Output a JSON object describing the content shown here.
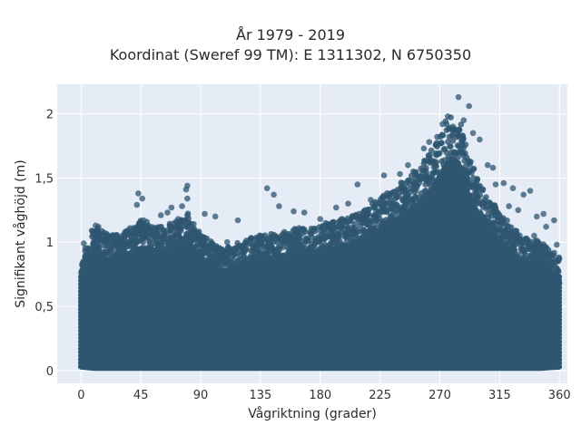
{
  "chart_data": {
    "type": "scatter",
    "title": "År 1979 - 2019",
    "subtitle": "Koordinat (Sweref 99 TM): E 1311302, N 6750350",
    "xlabel": "Vågriktning (grader)",
    "ylabel": "Signifikant våghöjd (m)",
    "xlim": [
      -18,
      366
    ],
    "ylim": [
      -0.1,
      2.23
    ],
    "xticks": [
      0,
      45,
      90,
      135,
      180,
      225,
      270,
      315,
      360
    ],
    "xtick_labels": [
      "0",
      "45",
      "90",
      "135",
      "180",
      "225",
      "270",
      "315",
      "360"
    ],
    "yticks": [
      0,
      0.5,
      1,
      1.5,
      2
    ],
    "ytick_labels": [
      "0",
      "0,5",
      "1",
      "1,5",
      "2"
    ],
    "grid": true,
    "background": "#e5ecf6",
    "marker_color": "#2e5670",
    "envelope": {
      "x": [
        0,
        10,
        20,
        30,
        45,
        60,
        75,
        80,
        90,
        105,
        120,
        135,
        150,
        165,
        180,
        195,
        210,
        225,
        240,
        255,
        265,
        270,
        275,
        280,
        285,
        290,
        300,
        315,
        330,
        345,
        360
      ],
      "y_max": [
        0.8,
        1.0,
        0.95,
        0.95,
        1.05,
        1.0,
        1.05,
        1.1,
        0.95,
        0.85,
        0.9,
        0.95,
        0.95,
        1.0,
        1.0,
        1.05,
        1.1,
        1.2,
        1.3,
        1.42,
        1.55,
        1.65,
        1.75,
        1.8,
        1.75,
        1.55,
        1.3,
        1.1,
        0.95,
        0.9,
        0.8
      ],
      "y_min": [
        0.03,
        0.02,
        0.02,
        0.02,
        0.02,
        0.02,
        0.02,
        0.02,
        0.02,
        0.02,
        0.02,
        0.02,
        0.02,
        0.02,
        0.02,
        0.02,
        0.02,
        0.02,
        0.02,
        0.02,
        0.02,
        0.02,
        0.02,
        0.02,
        0.02,
        0.02,
        0.02,
        0.02,
        0.02,
        0.02,
        0.03
      ]
    },
    "points": [
      {
        "x": 284,
        "y": 2.13
      },
      {
        "x": 292,
        "y": 2.06
      },
      {
        "x": 276,
        "y": 1.98
      },
      {
        "x": 288,
        "y": 1.95
      },
      {
        "x": 272,
        "y": 1.92
      },
      {
        "x": 280,
        "y": 1.9
      },
      {
        "x": 278,
        "y": 1.88
      },
      {
        "x": 295,
        "y": 1.85
      },
      {
        "x": 268,
        "y": 1.82
      },
      {
        "x": 262,
        "y": 1.78
      },
      {
        "x": 300,
        "y": 1.8
      },
      {
        "x": 258,
        "y": 1.73
      },
      {
        "x": 306,
        "y": 1.6
      },
      {
        "x": 310,
        "y": 1.58
      },
      {
        "x": 246,
        "y": 1.6
      },
      {
        "x": 250,
        "y": 1.55
      },
      {
        "x": 240,
        "y": 1.53
      },
      {
        "x": 228,
        "y": 1.52
      },
      {
        "x": 312,
        "y": 1.45
      },
      {
        "x": 318,
        "y": 1.46
      },
      {
        "x": 325,
        "y": 1.42
      },
      {
        "x": 333,
        "y": 1.37
      },
      {
        "x": 338,
        "y": 1.4
      },
      {
        "x": 322,
        "y": 1.28
      },
      {
        "x": 329,
        "y": 1.25
      },
      {
        "x": 343,
        "y": 1.2
      },
      {
        "x": 348,
        "y": 1.22
      },
      {
        "x": 356,
        "y": 1.17
      },
      {
        "x": 350,
        "y": 1.12
      },
      {
        "x": 358,
        "y": 0.98
      },
      {
        "x": 208,
        "y": 1.45
      },
      {
        "x": 218,
        "y": 1.33
      },
      {
        "x": 201,
        "y": 1.3
      },
      {
        "x": 192,
        "y": 1.27
      },
      {
        "x": 180,
        "y": 1.18
      },
      {
        "x": 184,
        "y": 1.15
      },
      {
        "x": 168,
        "y": 1.23
      },
      {
        "x": 160,
        "y": 1.24
      },
      {
        "x": 149,
        "y": 1.28
      },
      {
        "x": 140,
        "y": 1.42
      },
      {
        "x": 145,
        "y": 1.37
      },
      {
        "x": 118,
        "y": 1.17
      },
      {
        "x": 101,
        "y": 1.2
      },
      {
        "x": 93,
        "y": 1.22
      },
      {
        "x": 80,
        "y": 1.44
      },
      {
        "x": 79,
        "y": 1.41
      },
      {
        "x": 80,
        "y": 1.34
      },
      {
        "x": 76,
        "y": 1.28
      },
      {
        "x": 68,
        "y": 1.27
      },
      {
        "x": 65,
        "y": 1.23
      },
      {
        "x": 73,
        "y": 1.18
      },
      {
        "x": 60,
        "y": 1.21
      },
      {
        "x": 43,
        "y": 1.38
      },
      {
        "x": 46,
        "y": 1.34
      },
      {
        "x": 42,
        "y": 1.29
      },
      {
        "x": 47,
        "y": 1.17
      },
      {
        "x": 11,
        "y": 1.13
      },
      {
        "x": 13,
        "y": 1.12
      },
      {
        "x": 8,
        "y": 1.09
      },
      {
        "x": 20,
        "y": 1.05
      },
      {
        "x": 25,
        "y": 1.03
      },
      {
        "x": 2,
        "y": 0.99
      },
      {
        "x": 5,
        "y": 0.93
      },
      {
        "x": 31,
        "y": 1.01
      },
      {
        "x": 35,
        "y": 1.0
      },
      {
        "x": 56,
        "y": 1.03
      },
      {
        "x": 86,
        "y": 1.05
      },
      {
        "x": 110,
        "y": 1.0
      },
      {
        "x": 128,
        "y": 1.03
      },
      {
        "x": 153,
        "y": 1.08
      },
      {
        "x": 173,
        "y": 1.07
      },
      {
        "x": 196,
        "y": 1.12
      },
      {
        "x": 222,
        "y": 1.24
      },
      {
        "x": 235,
        "y": 1.3
      },
      {
        "x": 360,
        "y": 0.87
      },
      {
        "x": 341,
        "y": 1.05
      }
    ]
  }
}
